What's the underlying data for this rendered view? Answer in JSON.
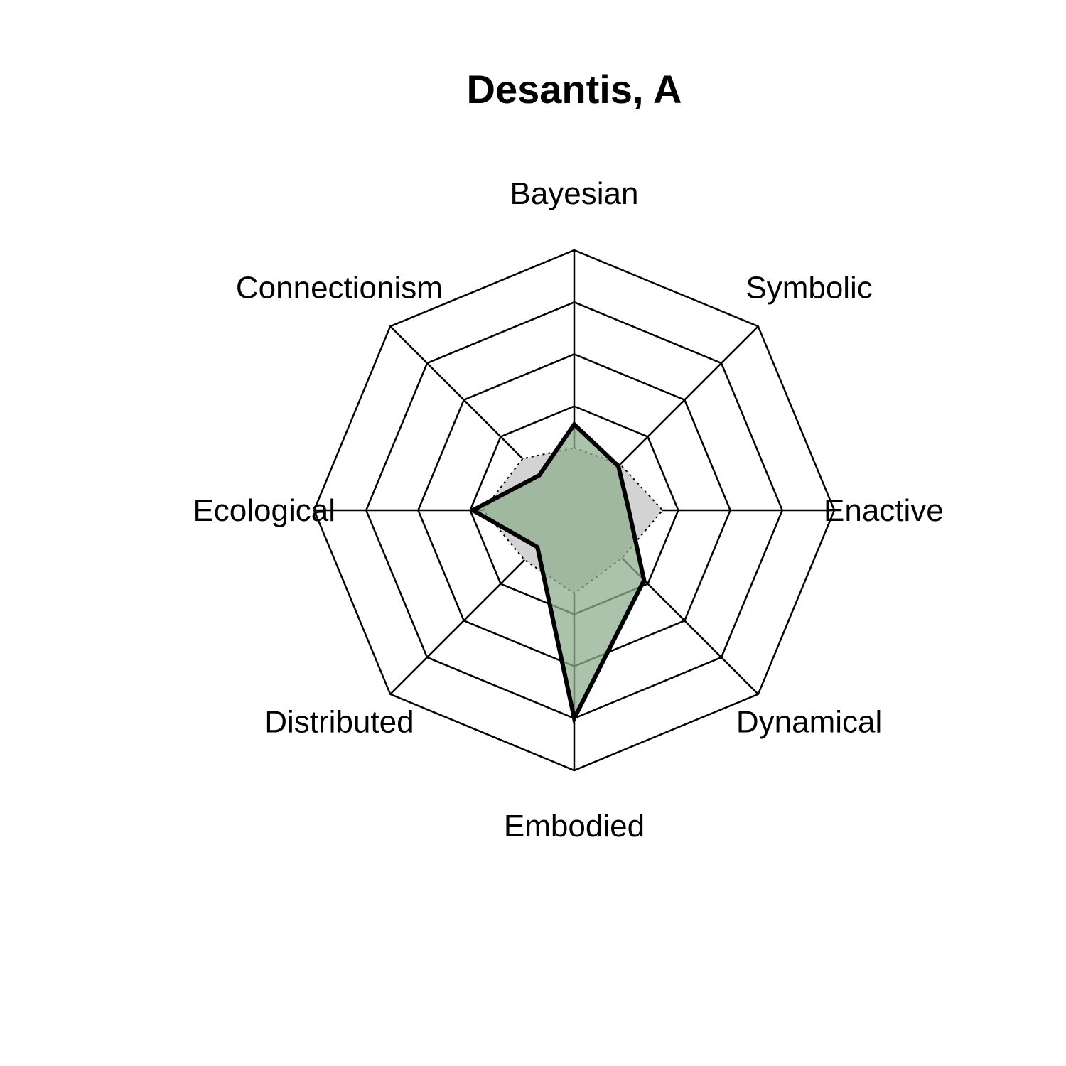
{
  "chart_data": {
    "type": "radar",
    "title": "Desantis, A",
    "axes": [
      "Bayesian",
      "Symbolic",
      "Enactive",
      "Dynamical",
      "Embodied",
      "Distributed",
      "Ecological",
      "Connectionism"
    ],
    "rmax": 5,
    "grid_levels": [
      1,
      2,
      3,
      4,
      5
    ],
    "series": [
      {
        "values": [
          1.65,
          1.2,
          1.05,
          1.9,
          4.0,
          1.0,
          1.95,
          0.95
        ],
        "style": "solid",
        "fill": "#8fae8f",
        "fill_opacity": 0.75,
        "stroke": "#000000"
      },
      {
        "values": [
          1.2,
          1.25,
          1.7,
          1.3,
          1.6,
          1.35,
          1.75,
          1.4
        ],
        "style": "dotted",
        "fill": "#d3d3d3",
        "fill_opacity": 1,
        "stroke": "#000000"
      }
    ]
  }
}
